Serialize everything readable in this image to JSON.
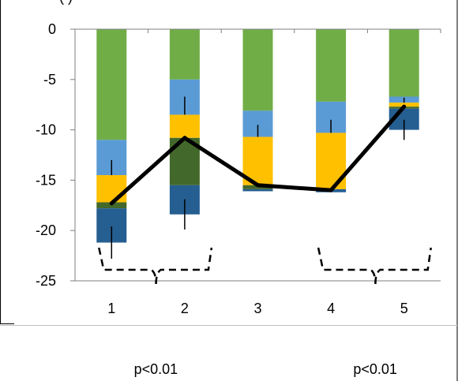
{
  "title_fragment": "(         )",
  "chart_data": {
    "type": "bar",
    "stacked": true,
    "categories": [
      "1",
      "2",
      "3",
      "4",
      "5"
    ],
    "ylim": [
      -25,
      0
    ],
    "yticks": [
      0,
      -5,
      -10,
      -15,
      -20,
      -25
    ],
    "grid": false,
    "series": [
      {
        "color": "#70ad47",
        "values": [
          -11.0,
          -5.0,
          -8.1,
          -7.2,
          -6.7
        ],
        "errors": [
          0,
          0,
          0,
          0,
          0
        ]
      },
      {
        "color": "#5b9bd5",
        "values": [
          -3.5,
          -3.5,
          -2.6,
          -3.1,
          -0.6
        ],
        "errors": [
          1.5,
          1.8,
          1.2,
          1.3,
          0.5
        ]
      },
      {
        "color": "#ffc000",
        "values": [
          -2.7,
          -2.3,
          -4.8,
          -5.6,
          -0.4
        ],
        "errors": [
          0,
          0,
          0,
          0,
          0
        ]
      },
      {
        "color": "#43682b",
        "values": [
          -0.6,
          -4.7,
          -0.4,
          0.0,
          -0.2
        ],
        "errors": [
          0,
          0,
          0,
          0,
          0
        ]
      },
      {
        "color": "#255e91",
        "values": [
          -3.4,
          -2.9,
          -0.2,
          -0.3,
          -2.1
        ],
        "errors": [
          1.6,
          1.5,
          0,
          0,
          1.0
        ]
      }
    ],
    "line": {
      "color": "#000000",
      "values": [
        -17.3,
        -10.8,
        -15.5,
        -16.0,
        -7.7
      ]
    },
    "comparisons": [
      {
        "from": 0,
        "to": 1,
        "label": "p<0.01"
      },
      {
        "from": 3,
        "to": 4,
        "label": "p<0.01"
      }
    ]
  }
}
